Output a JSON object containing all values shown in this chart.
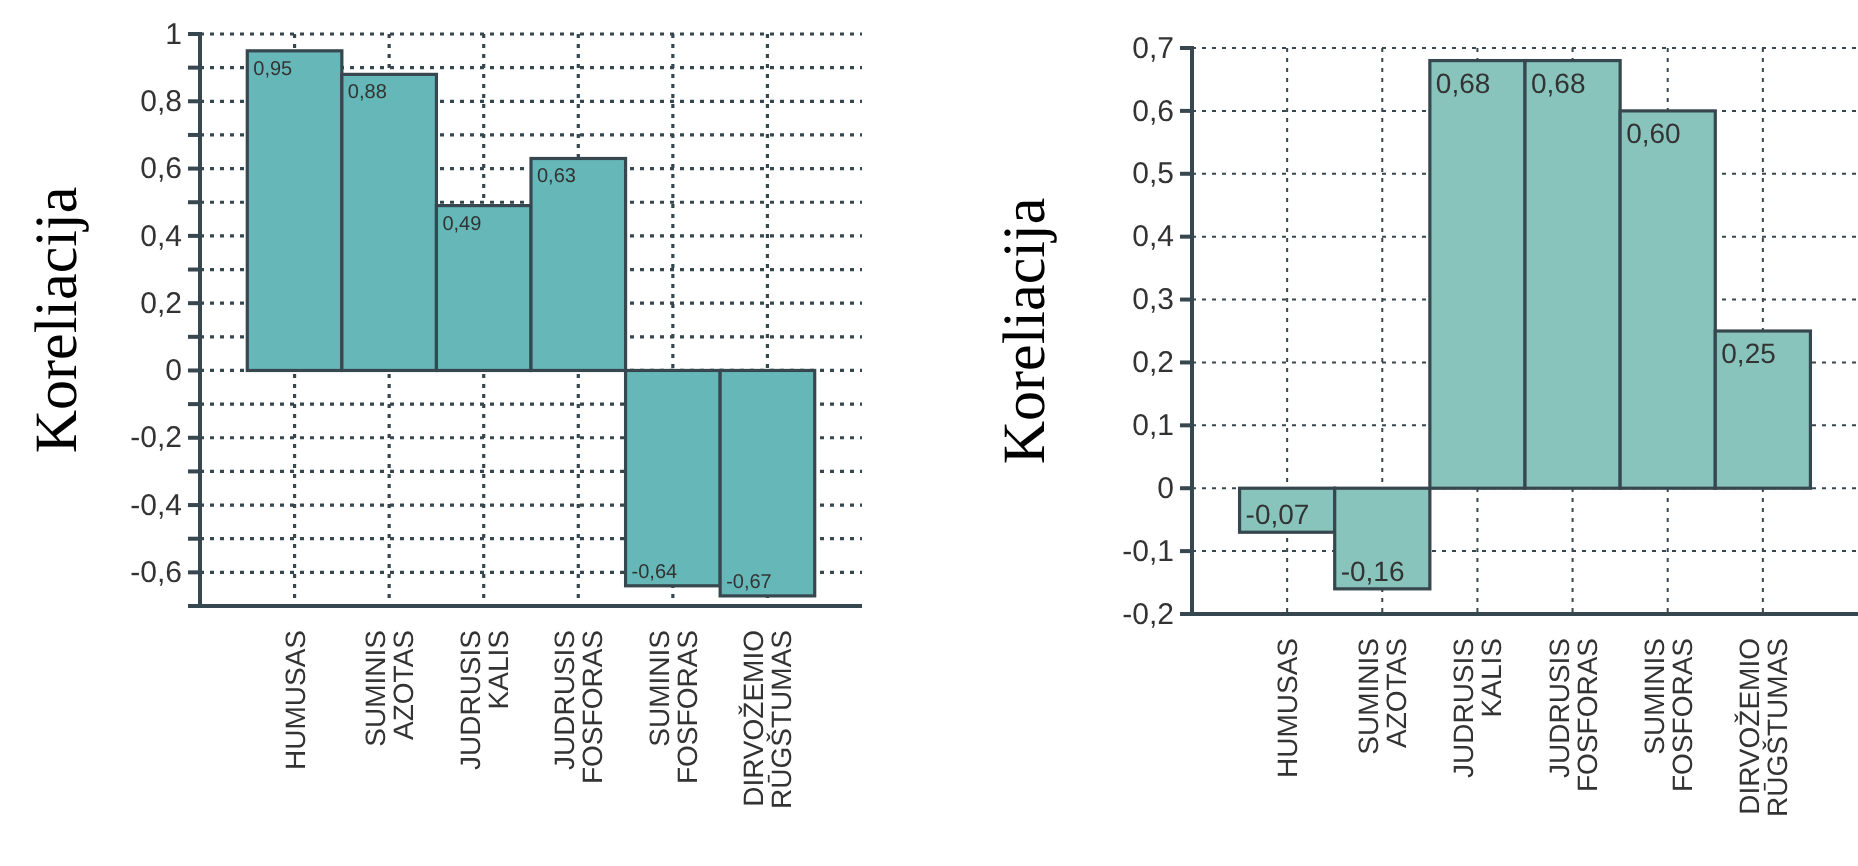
{
  "chart_data": [
    {
      "type": "bar",
      "ylabel": "Koreliacija",
      "categories": [
        "HUMUSAS",
        "SUMINIS AZOTAS",
        "JUDRUSIS KALIS",
        "JUDRUSIS FOSFORAS",
        "SUMINIS FOSFORAS",
        "DIRVOŽEMIO RŪGŠTUMAS"
      ],
      "values": [
        0.95,
        0.88,
        0.49,
        0.63,
        -0.64,
        -0.67
      ],
      "value_labels": [
        "0,95",
        "0,88",
        "0,49",
        "0,63",
        "-0,64",
        "-0,67"
      ],
      "color": "#66b8b8",
      "ylim": [
        -0.7,
        1
      ],
      "yticks": [
        {
          "value": -0.7,
          "label": null
        },
        {
          "value": -0.6,
          "label": "-0,6"
        },
        {
          "value": -0.5,
          "label": null
        },
        {
          "value": -0.4,
          "label": "-0,4"
        },
        {
          "value": -0.3,
          "label": null
        },
        {
          "value": -0.2,
          "label": "-0,2"
        },
        {
          "value": -0.1,
          "label": null
        },
        {
          "value": 0,
          "label": "0"
        },
        {
          "value": 0.1,
          "label": null
        },
        {
          "value": 0.2,
          "label": "0,2"
        },
        {
          "value": 0.3,
          "label": null
        },
        {
          "value": 0.4,
          "label": "0,4"
        },
        {
          "value": 0.5,
          "label": null
        },
        {
          "value": 0.6,
          "label": "0,6"
        },
        {
          "value": 0.7,
          "label": null
        },
        {
          "value": 0.8,
          "label": "0,8"
        },
        {
          "value": 0.9,
          "label": null
        },
        {
          "value": 1,
          "label": "1"
        }
      ],
      "grid": true
    },
    {
      "type": "bar",
      "ylabel": "Koreliacija",
      "categories": [
        "HUMUSAS",
        "SUMINIS AZOTAS",
        "JUDRUSIS KALIS",
        "JUDRUSIS FOSFORAS",
        "SUMINIS FOSFORAS",
        "DIRVOŽEMIO RŪGŠTUMAS"
      ],
      "values": [
        -0.07,
        -0.16,
        0.68,
        0.68,
        0.6,
        0.25
      ],
      "value_labels": [
        "-0,07",
        "-0,16",
        "0,68",
        "0,68",
        "0,60",
        "0,25"
      ],
      "color": "#88c4bc",
      "ylim": [
        -0.2,
        0.7
      ],
      "yticks": [
        {
          "value": -0.2,
          "label": "-0,2"
        },
        {
          "value": -0.1,
          "label": "-0,1"
        },
        {
          "value": 0,
          "label": "0"
        },
        {
          "value": 0.1,
          "label": "0,1"
        },
        {
          "value": 0.2,
          "label": "0,2"
        },
        {
          "value": 0.3,
          "label": "0,3"
        },
        {
          "value": 0.4,
          "label": "0,4"
        },
        {
          "value": 0.5,
          "label": "0,5"
        },
        {
          "value": 0.6,
          "label": "0,6"
        },
        {
          "value": 0.7,
          "label": "0,7"
        }
      ],
      "grid": true
    }
  ]
}
